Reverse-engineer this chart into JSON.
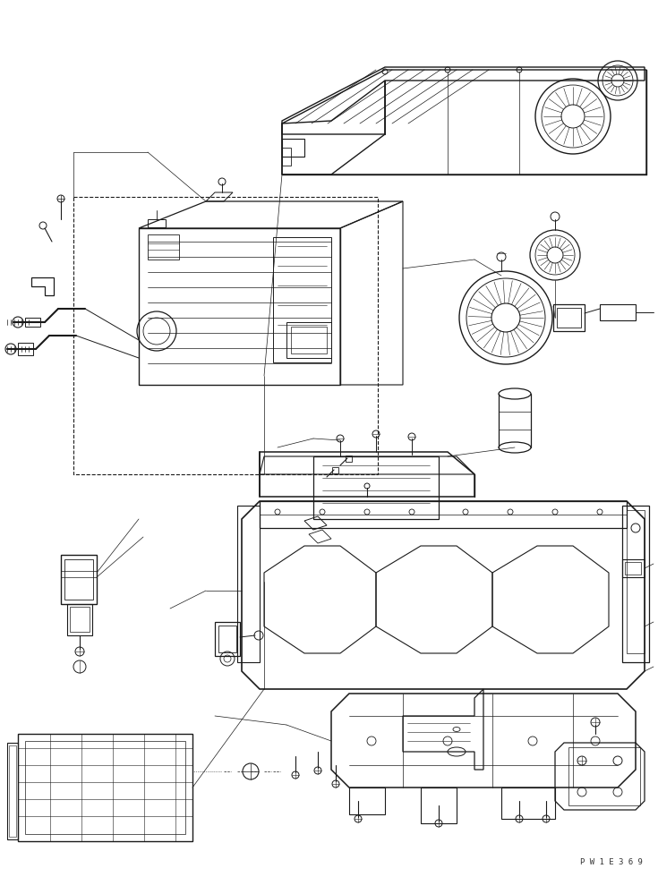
{
  "bg_color": "#ffffff",
  "line_color": "#1a1a1a",
  "lw": 0.7,
  "watermark": "P W 1 E 3 6 9",
  "fig_width": 7.35,
  "fig_height": 9.8
}
